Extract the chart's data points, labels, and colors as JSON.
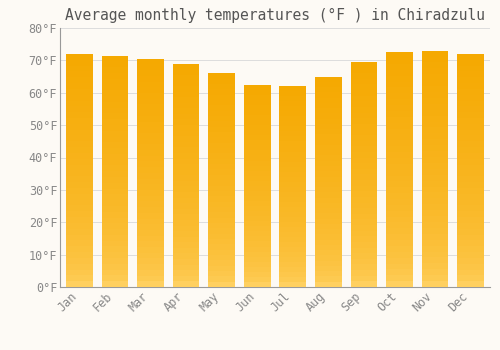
{
  "title": "Average monthly temperatures (°F ) in Chiradzulu",
  "months": [
    "Jan",
    "Feb",
    "Mar",
    "Apr",
    "May",
    "Jun",
    "Jul",
    "Aug",
    "Sep",
    "Oct",
    "Nov",
    "Dec"
  ],
  "values": [
    72,
    71.5,
    70.5,
    69,
    66,
    62.5,
    62,
    65,
    69.5,
    72.5,
    73,
    72
  ],
  "bar_color_top": "#F5A800",
  "bar_color_bottom": "#FFD060",
  "bar_edge_color": "#CC8800",
  "background_color": "#FDFAF5",
  "grid_color": "#DDDDDD",
  "text_color": "#888888",
  "title_color": "#555555",
  "ylim": [
    0,
    80
  ],
  "yticks": [
    0,
    10,
    20,
    30,
    40,
    50,
    60,
    70,
    80
  ],
  "title_fontsize": 10.5,
  "tick_fontsize": 8.5,
  "bar_width": 0.75
}
